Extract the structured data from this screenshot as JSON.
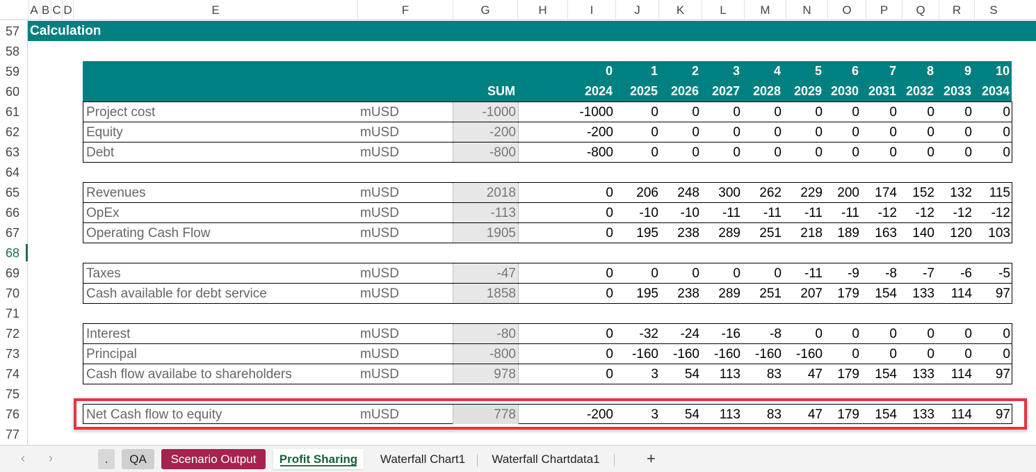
{
  "columns": [
    "A",
    "B",
    "C",
    "D",
    "E",
    "F",
    "G",
    "H",
    "I",
    "J",
    "K",
    "L",
    "M",
    "N",
    "O",
    "P",
    "Q",
    "R",
    "S"
  ],
  "row_numbers": [
    "57",
    "58",
    "59",
    "60",
    "61",
    "62",
    "63",
    "64",
    "65",
    "66",
    "67",
    "68",
    "69",
    "70",
    "71",
    "72",
    "73",
    "74",
    "75",
    "76",
    "77"
  ],
  "banner": "Calculation",
  "header": {
    "sum_label": "SUM",
    "periods": [
      "0",
      "1",
      "2",
      "3",
      "4",
      "5",
      "6",
      "7",
      "8",
      "9",
      "10"
    ],
    "years": [
      "2024",
      "2025",
      "2026",
      "2027",
      "2028",
      "2029",
      "2030",
      "2031",
      "2032",
      "2033",
      "2034"
    ]
  },
  "groups": [
    [
      {
        "label": "Project cost",
        "unit": "mUSD",
        "sum": "-1000",
        "values": [
          "-1000",
          "0",
          "0",
          "0",
          "0",
          "0",
          "0",
          "0",
          "0",
          "0",
          "0"
        ]
      },
      {
        "label": "Equity",
        "unit": "mUSD",
        "sum": "-200",
        "values": [
          "-200",
          "0",
          "0",
          "0",
          "0",
          "0",
          "0",
          "0",
          "0",
          "0",
          "0"
        ]
      },
      {
        "label": "Debt",
        "unit": "mUSD",
        "sum": "-800",
        "values": [
          "-800",
          "0",
          "0",
          "0",
          "0",
          "0",
          "0",
          "0",
          "0",
          "0",
          "0"
        ]
      }
    ],
    [
      {
        "label": "Revenues",
        "unit": "mUSD",
        "sum": "2018",
        "values": [
          "0",
          "206",
          "248",
          "300",
          "262",
          "229",
          "200",
          "174",
          "152",
          "132",
          "115"
        ]
      },
      {
        "label": "OpEx",
        "unit": "mUSD",
        "sum": "-113",
        "values": [
          "0",
          "-10",
          "-10",
          "-11",
          "-11",
          "-11",
          "-11",
          "-12",
          "-12",
          "-12",
          "-12"
        ]
      },
      {
        "label": "Operating Cash Flow",
        "unit": "mUSD",
        "sum": "1905",
        "values": [
          "0",
          "195",
          "238",
          "289",
          "251",
          "218",
          "189",
          "163",
          "140",
          "120",
          "103"
        ]
      }
    ],
    [
      {
        "label": "Taxes",
        "unit": "mUSD",
        "sum": "-47",
        "values": [
          "0",
          "0",
          "0",
          "0",
          "0",
          "-11",
          "-9",
          "-8",
          "-7",
          "-6",
          "-5"
        ]
      },
      {
        "label": "Cash available for debt service",
        "unit": "mUSD",
        "sum": "1858",
        "values": [
          "0",
          "195",
          "238",
          "289",
          "251",
          "207",
          "179",
          "154",
          "133",
          "114",
          "97"
        ]
      }
    ],
    [
      {
        "label": "Interest",
        "unit": "mUSD",
        "sum": "-80",
        "values": [
          "0",
          "-32",
          "-24",
          "-16",
          "-8",
          "0",
          "0",
          "0",
          "0",
          "0",
          "0"
        ]
      },
      {
        "label": "Principal",
        "unit": "mUSD",
        "sum": "-800",
        "values": [
          "0",
          "-160",
          "-160",
          "-160",
          "-160",
          "-160",
          "0",
          "0",
          "0",
          "0",
          "0"
        ]
      },
      {
        "label": "Cash flow availabe to shareholders",
        "unit": "mUSD",
        "sum": "978",
        "values": [
          "0",
          "3",
          "54",
          "113",
          "83",
          "47",
          "179",
          "154",
          "133",
          "114",
          "97"
        ]
      }
    ]
  ],
  "highlight_row": {
    "label": "Net Cash flow to equity",
    "unit": "mUSD",
    "sum": "778",
    "values": [
      "-200",
      "3",
      "54",
      "113",
      "83",
      "47",
      "179",
      "154",
      "133",
      "114",
      "97"
    ]
  },
  "highlight_color": "#e8343e",
  "accent_color": "#008080",
  "tabs": {
    "prev_icon": "‹",
    "next_icon": "›",
    "dot": ".",
    "qa": "QA",
    "scenario": "Scenario Output",
    "profit": "Profit Sharing",
    "waterfall": "Waterfall Chart1",
    "waterfall_data": "Waterfall Chartdata1",
    "add": "+"
  }
}
